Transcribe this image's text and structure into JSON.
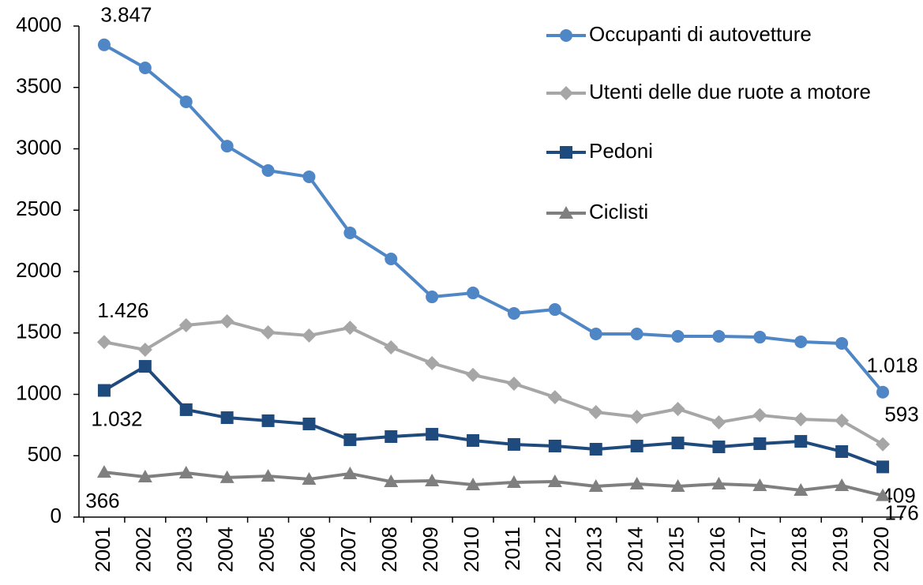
{
  "chart_data": {
    "type": "line",
    "categories": [
      "2001",
      "2002",
      "2003",
      "2004",
      "2005",
      "2006",
      "2007",
      "2008",
      "2009",
      "2010",
      "2011",
      "2012",
      "2013",
      "2014",
      "2015",
      "2016",
      "2017",
      "2018",
      "2019",
      "2020"
    ],
    "series": [
      {
        "name": "Occupanti di autovetture",
        "color": "#4f86c6",
        "marker": "circle",
        "values": [
          3847,
          3659,
          3383,
          3022,
          2823,
          2772,
          2315,
          2103,
          1794,
          1826,
          1659,
          1691,
          1492,
          1492,
          1473,
          1473,
          1466,
          1428,
          1415,
          1018
        ],
        "value_labels": [
          "3.847",
          null,
          null,
          null,
          null,
          null,
          null,
          null,
          null,
          null,
          null,
          null,
          null,
          null,
          null,
          null,
          null,
          null,
          null,
          "1.018"
        ]
      },
      {
        "name": "Utenti delle due ruote a motore",
        "color": "#a6a6a6",
        "marker": "diamond",
        "values": [
          1426,
          1363,
          1563,
          1595,
          1505,
          1479,
          1543,
          1383,
          1254,
          1158,
          1087,
          977,
          855,
          817,
          881,
          772,
          830,
          797,
          785,
          593
        ],
        "value_labels": [
          "1.426",
          null,
          null,
          null,
          null,
          null,
          null,
          null,
          null,
          null,
          null,
          null,
          null,
          null,
          null,
          null,
          null,
          null,
          null,
          "593"
        ]
      },
      {
        "name": "Pedoni",
        "color": "#1f4a7d",
        "marker": "square",
        "values": [
          1032,
          1228,
          875,
          810,
          785,
          759,
          630,
          656,
          675,
          624,
          592,
          579,
          553,
          579,
          604,
          572,
          598,
          617,
          534,
          409
        ],
        "value_labels": [
          "1.032",
          null,
          null,
          null,
          null,
          null,
          null,
          null,
          null,
          null,
          null,
          null,
          null,
          null,
          null,
          null,
          null,
          null,
          null,
          "409"
        ]
      },
      {
        "name": "Ciclisti",
        "color": "#7f7f7f",
        "marker": "triangle",
        "values": [
          366,
          328,
          360,
          322,
          334,
          309,
          354,
          289,
          296,
          264,
          283,
          289,
          251,
          270,
          251,
          270,
          257,
          219,
          257,
          176
        ],
        "value_labels": [
          "366",
          null,
          null,
          null,
          null,
          null,
          null,
          null,
          null,
          null,
          null,
          null,
          null,
          null,
          null,
          null,
          null,
          null,
          null,
          "176"
        ]
      }
    ],
    "ylim": [
      0,
      4000
    ],
    "yticks": [
      0,
      500,
      1000,
      1500,
      2000,
      2500,
      3000,
      3500,
      4000
    ],
    "grid": false,
    "legend": "top-right"
  }
}
